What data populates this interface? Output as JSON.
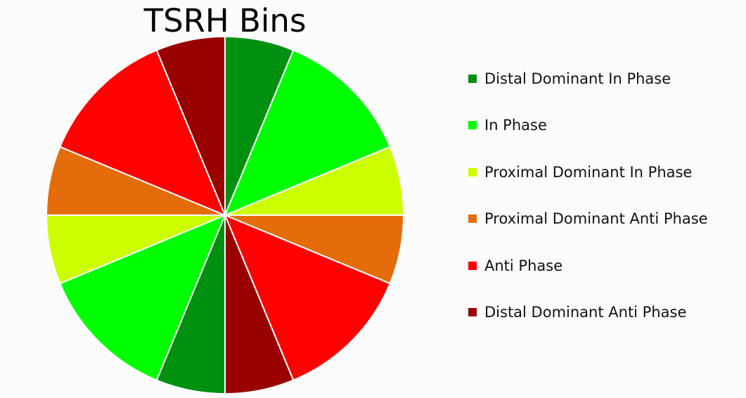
{
  "chart_data": {
    "type": "pie",
    "title": "TSRH Bins",
    "legend_position": "right",
    "start_angle_deg": 0,
    "direction": "clockwise",
    "series": [
      {
        "name": "Distal Dominant In Phase",
        "color": "#009010"
      },
      {
        "name": "In Phase",
        "color": "#00ff00"
      },
      {
        "name": "Proximal Dominant In Phase",
        "color": "#ccff00"
      },
      {
        "name": "Proximal Dominant Anti Phase",
        "color": "#e46c0a"
      },
      {
        "name": "Anti Phase",
        "color": "#ff0000"
      },
      {
        "name": "Distal Dominant Anti Phase",
        "color": "#990000"
      }
    ],
    "slices": [
      {
        "series_index": 0,
        "value": 22.5
      },
      {
        "series_index": 1,
        "value": 45
      },
      {
        "series_index": 2,
        "value": 22.5
      },
      {
        "series_index": 3,
        "value": 22.5
      },
      {
        "series_index": 4,
        "value": 45
      },
      {
        "series_index": 5,
        "value": 22.5
      },
      {
        "series_index": 0,
        "value": 22.5
      },
      {
        "series_index": 1,
        "value": 45
      },
      {
        "series_index": 2,
        "value": 22.5
      },
      {
        "series_index": 3,
        "value": 22.5
      },
      {
        "series_index": 4,
        "value": 45
      },
      {
        "series_index": 5,
        "value": 22.5
      }
    ]
  }
}
